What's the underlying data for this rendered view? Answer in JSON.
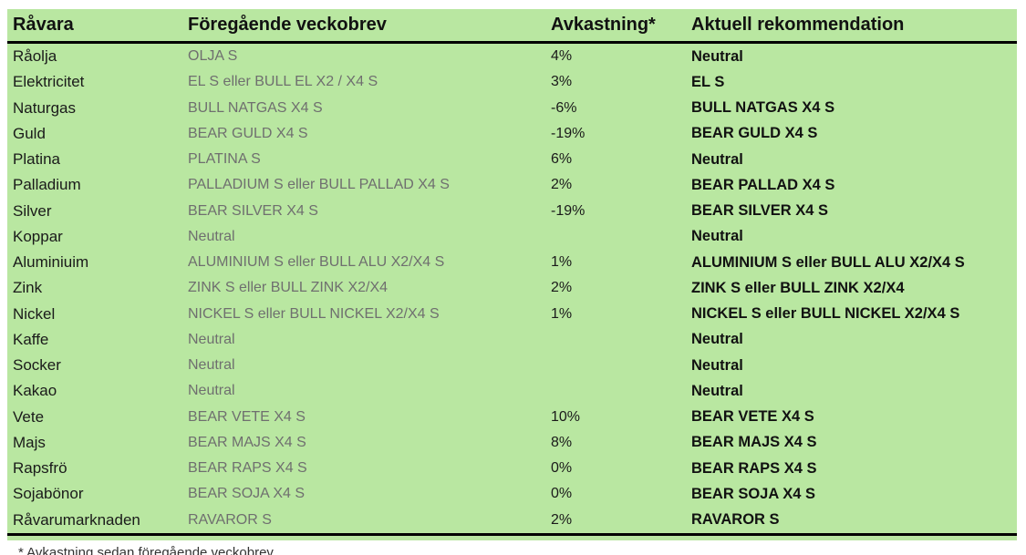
{
  "table": {
    "headers": {
      "ravara": "Råvara",
      "foregaende": "Föregående veckobrev",
      "avkastning": "Avkastning*",
      "rekommendation": "Aktuell rekommendation"
    },
    "rows": [
      {
        "ravara": "Råolja",
        "foregaende": "OLJA S",
        "avkastning": "4%",
        "rekommendation": "Neutral"
      },
      {
        "ravara": "Elektricitet",
        "foregaende": "EL S eller BULL EL X2 / X4 S",
        "avkastning": "3%",
        "rekommendation": "EL S"
      },
      {
        "ravara": "Naturgas",
        "foregaende": "BULL NATGAS X4 S",
        "avkastning": "-6%",
        "rekommendation": "BULL NATGAS X4 S"
      },
      {
        "ravara": "Guld",
        "foregaende": "BEAR GULD X4 S",
        "avkastning": "-19%",
        "rekommendation": "BEAR GULD X4 S"
      },
      {
        "ravara": "Platina",
        "foregaende": "PLATINA S",
        "avkastning": "6%",
        "rekommendation": "Neutral"
      },
      {
        "ravara": "Palladium",
        "foregaende": "PALLADIUM S eller BULL PALLAD X4 S",
        "avkastning": "2%",
        "rekommendation": "BEAR PALLAD X4 S"
      },
      {
        "ravara": "Silver",
        "foregaende": "BEAR SILVER X4 S",
        "avkastning": "-19%",
        "rekommendation": "BEAR SILVER X4 S"
      },
      {
        "ravara": "Koppar",
        "foregaende": "Neutral",
        "avkastning": "",
        "rekommendation": "Neutral"
      },
      {
        "ravara": "Aluminiuim",
        "foregaende": "ALUMINIUM S eller BULL ALU X2/X4 S",
        "avkastning": "1%",
        "rekommendation": "ALUMINIUM S eller BULL ALU X2/X4 S"
      },
      {
        "ravara": "Zink",
        "foregaende": "ZINK S eller BULL ZINK X2/X4",
        "avkastning": "2%",
        "rekommendation": "ZINK S eller BULL ZINK X2/X4"
      },
      {
        "ravara": "Nickel",
        "foregaende": "NICKEL S eller BULL NICKEL X2/X4 S",
        "avkastning": "1%",
        "rekommendation": "NICKEL S eller BULL NICKEL X2/X4 S"
      },
      {
        "ravara": "Kaffe",
        "foregaende": "Neutral",
        "avkastning": "",
        "rekommendation": "Neutral"
      },
      {
        "ravara": "Socker",
        "foregaende": "Neutral",
        "avkastning": "",
        "rekommendation": "Neutral"
      },
      {
        "ravara": "Kakao",
        "foregaende": "Neutral",
        "avkastning": "",
        "rekommendation": "Neutral"
      },
      {
        "ravara": "Vete",
        "foregaende": "BEAR VETE X4 S",
        "avkastning": "10%",
        "rekommendation": "BEAR VETE X4 S"
      },
      {
        "ravara": "Majs",
        "foregaende": "BEAR MAJS X4 S",
        "avkastning": "8%",
        "rekommendation": "BEAR MAJS X4 S"
      },
      {
        "ravara": "Rapsfrö",
        "foregaende": "BEAR RAPS X4 S",
        "avkastning": "0%",
        "rekommendation": "BEAR RAPS X4 S"
      },
      {
        "ravara": "Sojabönor",
        "foregaende": "BEAR SOJA X4 S",
        "avkastning": "0%",
        "rekommendation": "BEAR SOJA X4 S"
      },
      {
        "ravara": "Råvarumarknaden",
        "foregaende": "RAVAROR S",
        "avkastning": "2%",
        "rekommendation": "RAVAROR S"
      }
    ]
  },
  "footnote_partial": "* Avkastning sedan föregående veckobrev",
  "colors": {
    "table_background": "#b9e7a1",
    "secondary_text": "#6f6f6f",
    "primary_text": "#111111",
    "rule": "#000000"
  }
}
